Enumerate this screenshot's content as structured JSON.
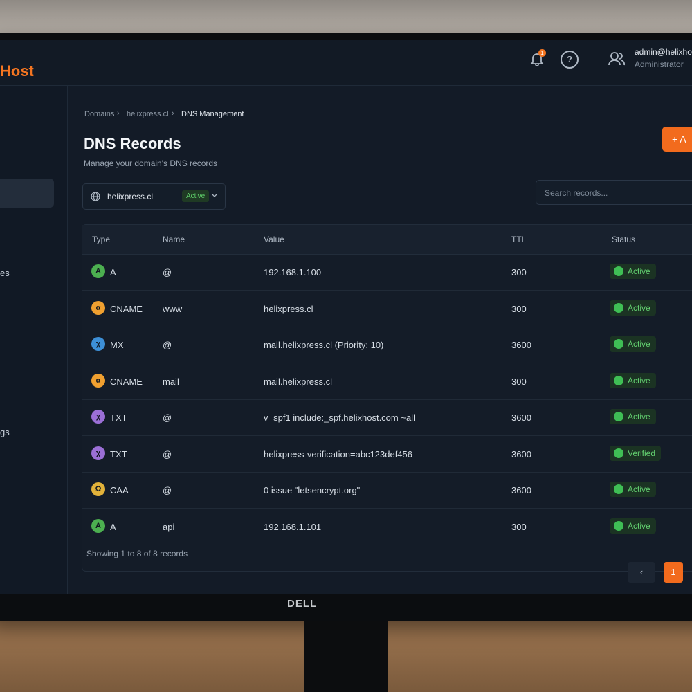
{
  "header": {
    "brand": "Host",
    "notifications": "1",
    "help": "?",
    "user_email": "admin@helixhost",
    "user_role": "Administrator"
  },
  "sidebar": {
    "items": [
      "es",
      "gs"
    ]
  },
  "breadcrumb": [
    "Domains",
    "helixpress.cl",
    "DNS Management"
  ],
  "page": {
    "title": "DNS Records",
    "subtitle": "Manage your domain's DNS records",
    "add_button": "A"
  },
  "domain_select": {
    "domain": "helixpress.cl",
    "status": "Active"
  },
  "search": {
    "placeholder": "Search records..."
  },
  "table": {
    "columns": [
      "Type",
      "Name",
      "Value",
      "TTL",
      "Status"
    ],
    "rows": [
      {
        "icon": "A",
        "type": "A",
        "name": "@",
        "value": "192.168.1.100",
        "ttl": 300,
        "status": "Active"
      },
      {
        "icon": "α",
        "type": "CNAME",
        "name": "www",
        "value": "helixpress.cl",
        "ttl": 300,
        "status": "Active"
      },
      {
        "icon": "χ",
        "type": "MX",
        "name": "@",
        "value": "mail.helixpress.cl (Priority: 10)",
        "ttl": 3600,
        "status": "Active"
      },
      {
        "icon": "α",
        "type": "CNAME",
        "name": "mail",
        "value": "mail.helixpress.cl",
        "ttl": 300,
        "status": "Active"
      },
      {
        "icon": "χ",
        "type": "TXT",
        "name": "@",
        "value": "v=spf1 include:_spf.helixhost.com ~all",
        "ttl": 3600,
        "status": "Active"
      },
      {
        "icon": "χ",
        "type": "TXT",
        "name": "@",
        "value": "helixpress-verification=abc123def456",
        "ttl": 3600,
        "status": "Verified"
      },
      {
        "icon": "Ω",
        "type": "CAA",
        "name": "@",
        "value": "0 issue \"letsencrypt.org\"",
        "ttl": 3600,
        "status": "Active"
      },
      {
        "icon": "A",
        "type": "A",
        "name": "api",
        "value": "192.168.1.101",
        "ttl": 300,
        "status": "Active"
      }
    ],
    "summary": "Showing 1 to 8 of 8 records"
  },
  "pagination": {
    "prev": "‹",
    "pages": [
      "1"
    ]
  },
  "monitor": {
    "brand": "DELL"
  }
}
